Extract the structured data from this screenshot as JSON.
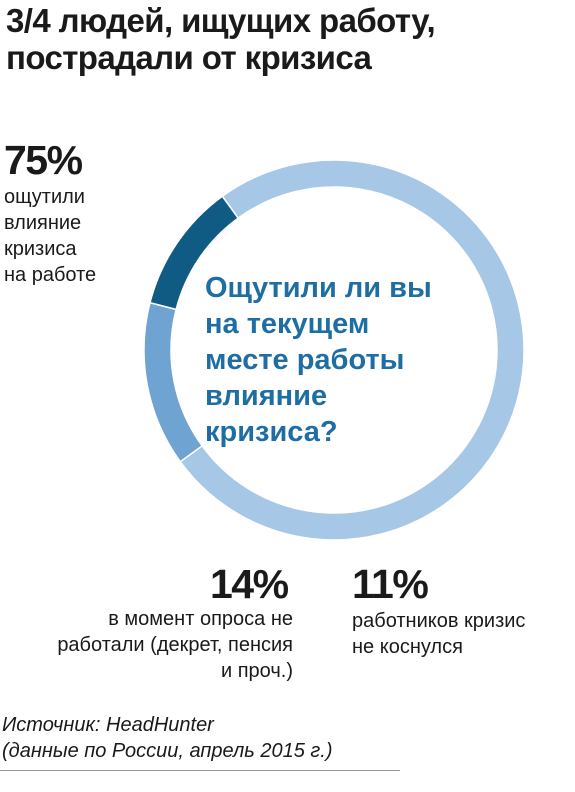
{
  "title": {
    "line1": "3/4 людей, ищущих работу,",
    "line2": "пострадали от кризиса"
  },
  "question": {
    "lines": [
      "Ощутили ли вы",
      "на текущем",
      "месте работы",
      "влияние",
      "кризиса?"
    ]
  },
  "labels": {
    "affected": {
      "pct": "75%",
      "lines": [
        "ощутили",
        "влияние",
        "кризиса",
        "на работе"
      ]
    },
    "not_working": {
      "pct": "14%",
      "lines": [
        "в момент опроса не",
        "работали (декрет, пенсия",
        "и проч.)"
      ]
    },
    "not_affected": {
      "pct": "11%",
      "lines": [
        "работников кризис",
        "не коснулся"
      ]
    }
  },
  "source": {
    "line1": "Источник: HeadHunter",
    "line2": "(данные по России, апрель 2015 г.)"
  },
  "chart_data": {
    "type": "pie",
    "variant": "donut",
    "title": "3/4 людей, ищущих работу, пострадали от кризиса",
    "center_text": "Ощутили ли вы на текущем месте работы влияние кризиса?",
    "slices": [
      {
        "label": "ощутили влияние кризиса на работе",
        "value": 75,
        "color": "#a7c7e7"
      },
      {
        "label": "работников кризис не коснулся",
        "value": 11,
        "color": "#0f5b84"
      },
      {
        "label": "в момент опроса не работали (декрет, пенсия и проч.)",
        "value": 14,
        "color": "#6fa3d1"
      }
    ],
    "start_angle_deg": 144,
    "direction": "counterclockwise",
    "source": "Источник: HeadHunter (данные по России, апрель 2015 г.)"
  }
}
